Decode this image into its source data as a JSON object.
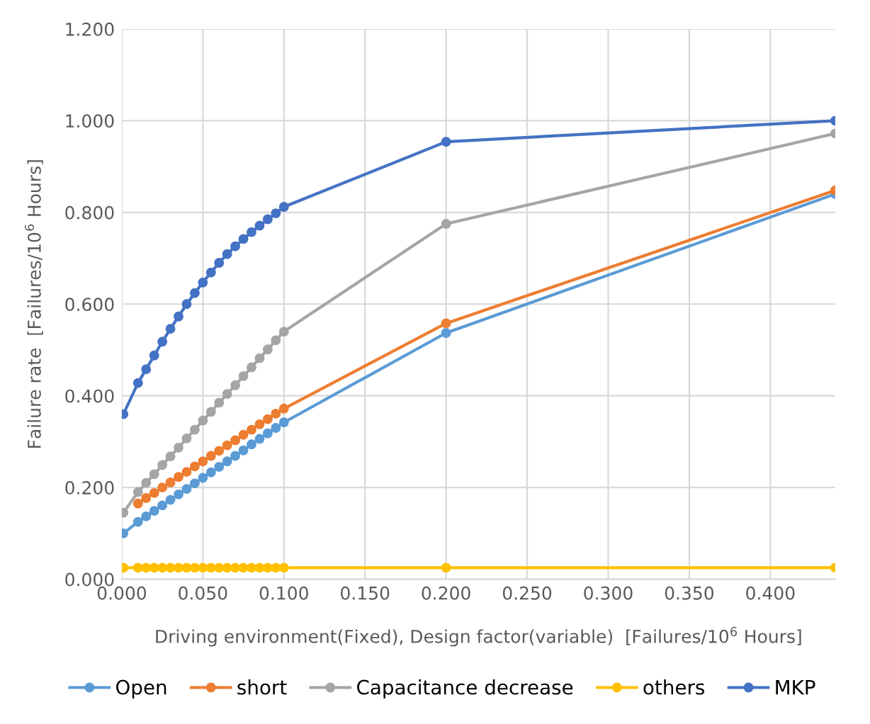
{
  "chart_data": {
    "type": "line",
    "xlabel": "Driving environment(Fixed), Design factor(variable)  [Failures/10$^{6}$ Hours]",
    "ylabel": "Failure rate  [Failures/10$^{6}$ Hours]",
    "x": [
      0.001,
      0.01,
      0.015,
      0.02,
      0.025,
      0.03,
      0.035,
      0.04,
      0.045,
      0.05,
      0.055,
      0.06,
      0.065,
      0.07,
      0.075,
      0.08,
      0.085,
      0.09,
      0.095,
      0.1,
      0.2,
      0.44
    ],
    "series": [
      {
        "name": "Open",
        "color": "#5b9bd5",
        "values": [
          0.1,
          0.125,
          0.137,
          0.149,
          0.161,
          0.173,
          0.185,
          0.197,
          0.209,
          0.221,
          0.233,
          0.245,
          0.257,
          0.269,
          0.281,
          0.294,
          0.306,
          0.318,
          0.33,
          0.342,
          0.537,
          0.84
        ]
      },
      {
        "name": "short",
        "color": "#ed7d31",
        "values": [
          null,
          0.165,
          0.177,
          0.188,
          0.2,
          0.211,
          0.223,
          0.234,
          0.246,
          0.257,
          0.269,
          0.28,
          0.292,
          0.303,
          0.315,
          0.326,
          0.338,
          0.349,
          0.361,
          0.372,
          0.558,
          0.848
        ]
      },
      {
        "name": "Capacitance decrease",
        "color": "#a5a5a5",
        "values": [
          0.145,
          0.19,
          0.21,
          0.229,
          0.249,
          0.268,
          0.287,
          0.307,
          0.326,
          0.346,
          0.365,
          0.385,
          0.404,
          0.423,
          0.443,
          0.462,
          0.482,
          0.501,
          0.521,
          0.54,
          0.775,
          0.972
        ]
      },
      {
        "name": "others",
        "color": "#ffc000",
        "values": [
          0.025,
          0.025,
          0.025,
          0.025,
          0.025,
          0.025,
          0.025,
          0.025,
          0.025,
          0.025,
          0.025,
          0.025,
          0.025,
          0.025,
          0.025,
          0.025,
          0.025,
          0.025,
          0.025,
          0.025,
          0.025,
          0.025
        ]
      },
      {
        "name": "MKP",
        "color": "#4472c4",
        "values": [
          0.36,
          0.428,
          0.458,
          0.488,
          0.518,
          0.546,
          0.573,
          0.6,
          0.624,
          0.647,
          0.669,
          0.69,
          0.709,
          0.726,
          0.742,
          0.757,
          0.771,
          0.785,
          0.798,
          0.812,
          0.954,
          1.0
        ]
      }
    ],
    "xlim": [
      0,
      0.44
    ],
    "xticks": [
      {
        "value": 0,
        "label": "0.000"
      },
      {
        "value": 0.05,
        "label": "0.050"
      },
      {
        "value": 0.1,
        "label": "0.100"
      },
      {
        "value": 0.15,
        "label": "0.150"
      },
      {
        "value": 0.2,
        "label": "0.200"
      },
      {
        "value": 0.25,
        "label": "0.250"
      },
      {
        "value": 0.3,
        "label": "0.300"
      },
      {
        "value": 0.35,
        "label": "0.350"
      },
      {
        "value": 0.4,
        "label": "0.400"
      }
    ],
    "ylim": [
      0,
      1.2
    ],
    "yticks": [
      {
        "value": 0,
        "label": "0.000"
      },
      {
        "value": 0.2,
        "label": "0.200"
      },
      {
        "value": 0.4,
        "label": "0.400"
      },
      {
        "value": 0.6,
        "label": "0.600"
      },
      {
        "value": 0.8,
        "label": "0.800"
      },
      {
        "value": 1.0,
        "label": "1.000"
      },
      {
        "value": 1.2,
        "label": "1.200"
      }
    ],
    "grid": true,
    "legend": "bottom",
    "marker": "circle",
    "line_style": "solid"
  }
}
